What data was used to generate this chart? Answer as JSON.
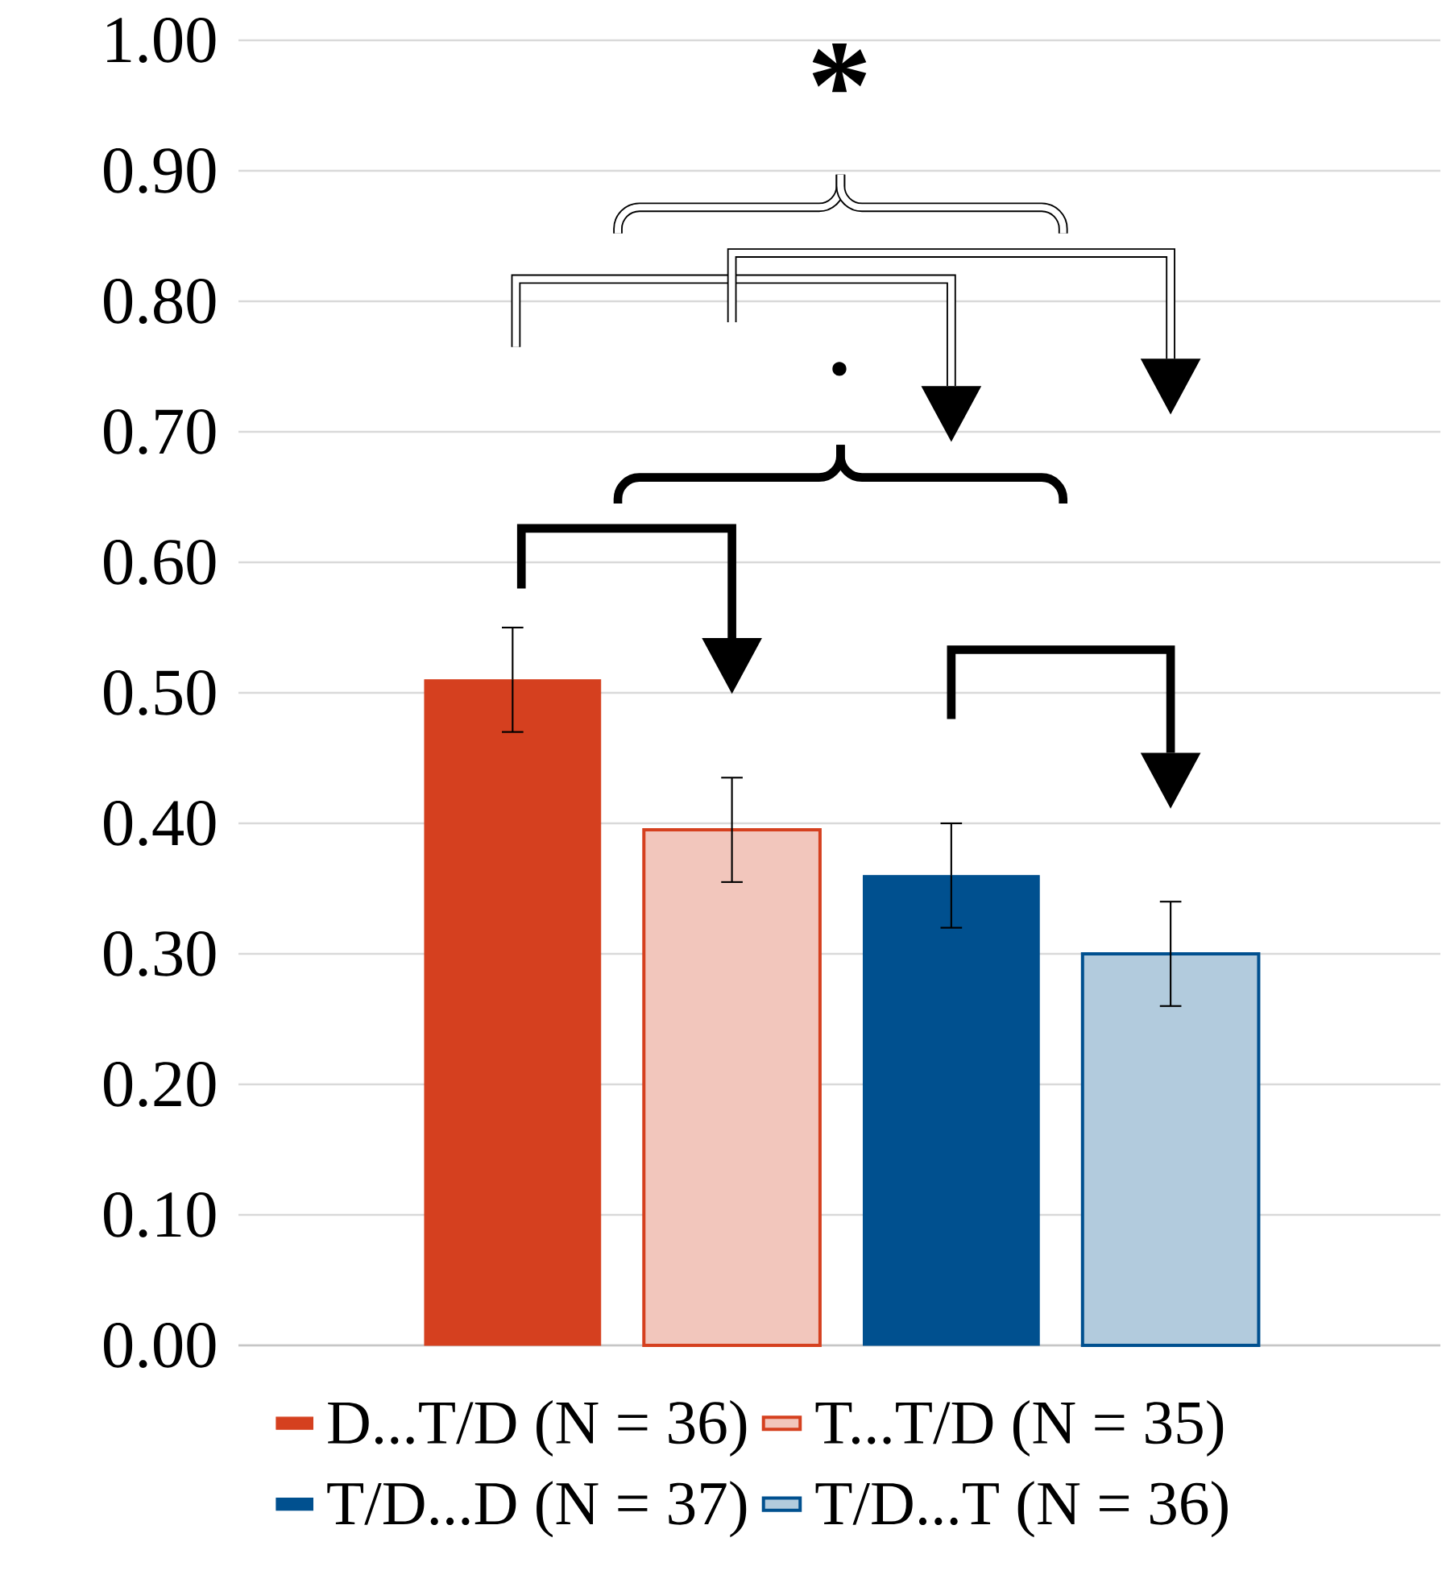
{
  "chart_data": {
    "type": "bar",
    "categories": [
      null,
      null,
      null,
      null
    ],
    "series": [
      {
        "name": "D...T/D (N = 36)",
        "color": "#d5401f",
        "values": [
          0.51,
          null,
          null,
          null
        ],
        "errors": [
          0.04,
          null,
          null,
          null
        ]
      },
      {
        "name": "T...T/D (N = 35)",
        "color": "#d5401f",
        "values": [
          null,
          0.395,
          null,
          null
        ],
        "errors": [
          null,
          0.04,
          null,
          null
        ]
      },
      {
        "name": "T/D...D (N = 37)",
        "color": "#00508f",
        "values": [
          null,
          null,
          0.36,
          null
        ],
        "errors": [
          null,
          null,
          0.04,
          null
        ]
      },
      {
        "name": "T/D...T (N = 36)",
        "color": "#00508f",
        "values": [
          null,
          null,
          null,
          0.3
        ],
        "errors": [
          null,
          null,
          null,
          0.04
        ]
      }
    ],
    "ylim": [
      0,
      1
    ],
    "yticks": [
      {
        "value": 0,
        "label": "0.00"
      },
      {
        "value": 0.1,
        "label": "0.10"
      },
      {
        "value": 0.2,
        "label": "0.20"
      },
      {
        "value": 0.3,
        "label": "0.30"
      },
      {
        "value": 0.4,
        "label": "0.40"
      },
      {
        "value": 0.5,
        "label": "0.50"
      },
      {
        "value": 0.6,
        "label": "0.60"
      },
      {
        "value": 0.7,
        "label": "0.70"
      },
      {
        "value": 0.8,
        "label": "0.80"
      },
      {
        "value": 0.9,
        "label": "0.90"
      },
      {
        "value": 1,
        "label": "1.00"
      }
    ],
    "annotations": [
      "*",
      "·"
    ],
    "grid": "y",
    "legend": "bottom"
  }
}
